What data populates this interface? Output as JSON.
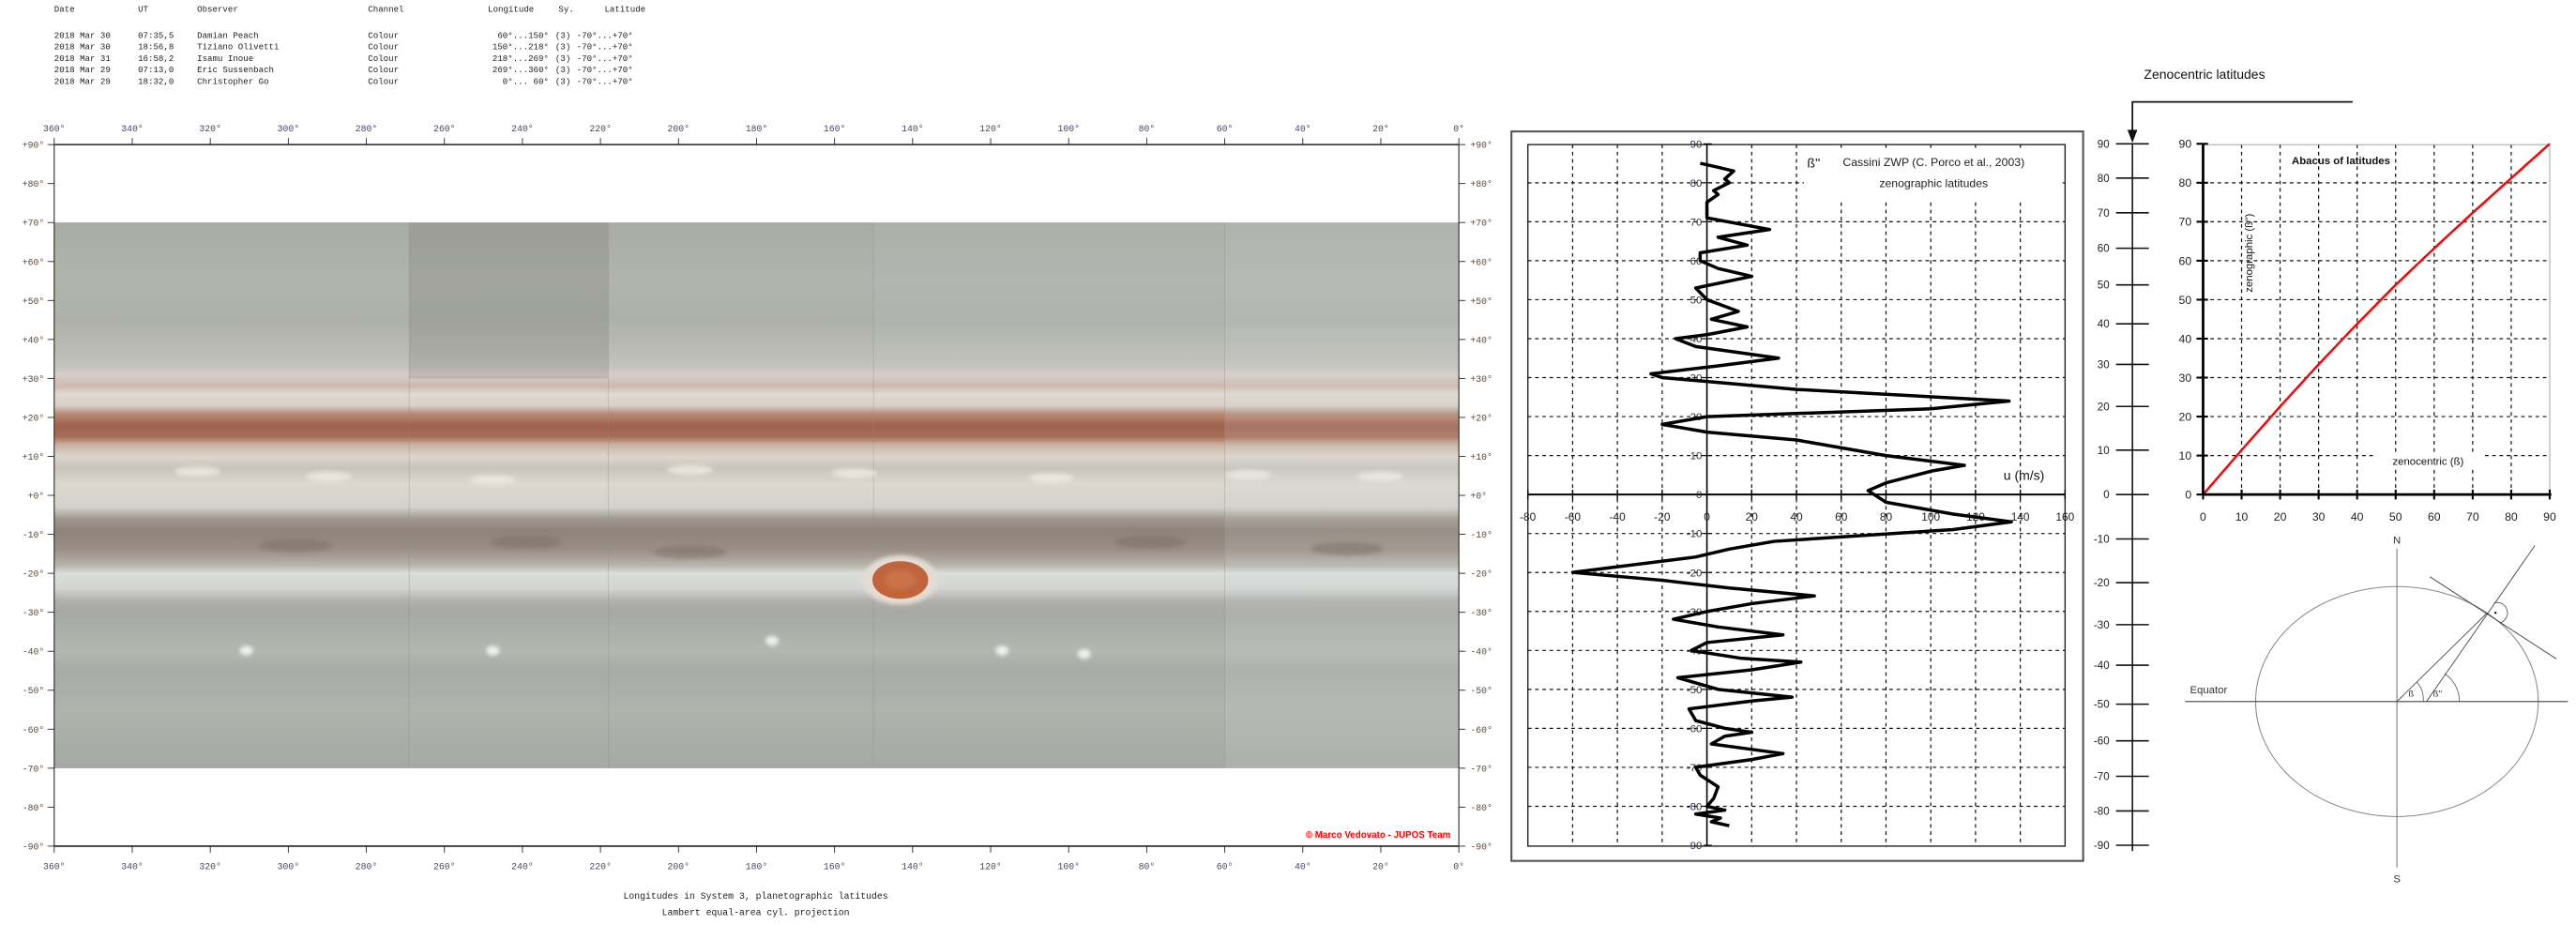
{
  "header": {
    "columns": [
      "Date",
      "UT",
      "Observer",
      "Channel",
      "Longitude",
      "Sy.",
      "Latitude"
    ],
    "rows": [
      [
        "2018 Mar 30",
        "07:35,5",
        "Damian Peach",
        "Colour",
        "60°...150°",
        "(3)",
        "-70°...+70°"
      ],
      [
        "2018 Mar 30",
        "18:56,8",
        "Tiziano Olivetti",
        "Colour",
        "150°...218°",
        "(3)",
        "-70°...+70°"
      ],
      [
        "2018 Mar 31",
        "16:58,2",
        "Isamu Inoue",
        "Colour",
        "218°...269°",
        "(3)",
        "-70°...+70°"
      ],
      [
        "2018 Mar 29",
        "07:13,0",
        "Eric Sussenbach",
        "Colour",
        "269°...360°",
        "(3)",
        "-70°...+70°"
      ],
      [
        "2018 Mar 29",
        "18:32,0",
        "Christopher Go",
        "Colour",
        "0°... 60°",
        "(3)",
        "-70°...+70°"
      ]
    ]
  },
  "map": {
    "lon_labels": [
      "360°",
      "340°",
      "320°",
      "300°",
      "280°",
      "260°",
      "240°",
      "220°",
      "200°",
      "180°",
      "160°",
      "140°",
      "120°",
      "100°",
      "80°",
      "60°",
      "40°",
      "20°",
      "0°"
    ],
    "lat_labels": [
      "+90°",
      "+80°",
      "+70°",
      "+60°",
      "+50°",
      "+40°",
      "+30°",
      "+20°",
      "+10°",
      "+0°",
      "-10°",
      "-20°",
      "-30°",
      "-40°",
      "-50°",
      "-60°",
      "-70°",
      "-80°",
      "-90°"
    ],
    "segment_boundaries_lon": [
      60,
      150,
      218,
      269
    ],
    "copyright": "© Marco Vedovato - JUPOS Team",
    "caption_line1": "Longitudes in System 3, planetographic latitudes",
    "caption_line2": "Lambert equal-area cyl. projection",
    "colors": {
      "copyright": "#ff0000",
      "grs": "#c0643c",
      "neb": "#a0624e"
    }
  },
  "zenocentric_scale": {
    "title": "Zenocentric latitudes",
    "labels": [
      "90",
      "80",
      "70",
      "60",
      "50",
      "40",
      "30",
      "20",
      "10",
      "0",
      "-10",
      "-20",
      "-30",
      "-40",
      "-50",
      "-60",
      "-70",
      "-80",
      "-90"
    ]
  },
  "chart_data": [
    {
      "type": "line",
      "title": "Cassini ZWP (C. Porco et al., 2003)",
      "subtitle": "zenographic latitudes",
      "xlabel": "u (m/s)",
      "ylabel": "ß''",
      "xlim": [
        -80,
        160
      ],
      "ylim": [
        -90,
        90
      ],
      "xticks": [
        "-80",
        "-60",
        "-40",
        "-20",
        "0",
        "20",
        "40",
        "60",
        "80",
        "100",
        "120",
        "140",
        "160"
      ],
      "yticks": [
        "90",
        "80",
        "70",
        "60",
        "50",
        "40",
        "30",
        "20",
        "10",
        "0",
        "-10",
        "-20",
        "-30",
        "-40",
        "-50",
        "-60",
        "-70",
        "-80",
        "-90"
      ],
      "grid": true,
      "series": [
        {
          "lat": [
            85,
            84,
            83,
            81,
            80,
            78,
            77,
            75,
            72,
            71,
            68,
            66,
            64,
            62,
            60,
            58,
            56,
            53,
            50,
            47,
            45,
            43,
            41,
            40,
            38,
            35,
            33,
            31,
            30,
            29,
            27,
            24,
            22,
            20,
            18,
            16,
            14,
            10,
            7.5,
            6,
            3,
            1,
            -2,
            -5,
            -7,
            -9,
            -12,
            -14,
            -16,
            -20,
            -22,
            -24,
            -26,
            -28,
            -30,
            -32,
            -34,
            -36,
            -38,
            -40,
            -42,
            -43,
            -45,
            -47,
            -50,
            -52,
            -53,
            -55,
            -58,
            -60,
            -61,
            -62,
            -64,
            -65,
            -66.5,
            -68,
            -70,
            -72,
            -75,
            -78,
            -80,
            -81,
            -82,
            -83,
            -84,
            -85
          ],
          "u": [
            -3,
            5,
            12,
            8,
            10,
            3,
            5,
            0,
            0,
            0,
            28,
            5,
            18,
            -3,
            -3,
            5,
            20,
            -5,
            0,
            14,
            2,
            18,
            0,
            -14,
            -5,
            32,
            5,
            -25,
            -20,
            0,
            40,
            135,
            100,
            0,
            -20,
            0,
            40,
            80,
            115,
            100,
            80,
            72,
            80,
            110,
            136,
            110,
            30,
            10,
            -5,
            -60,
            -20,
            10,
            48,
            20,
            0,
            -15,
            5,
            34,
            0,
            -7,
            15,
            42,
            20,
            -13,
            5,
            38,
            20,
            -8,
            -5,
            8,
            20,
            8,
            2,
            15,
            34,
            20,
            -5,
            -3,
            5,
            3,
            0,
            8,
            -5,
            6,
            2,
            10
          ]
        }
      ]
    },
    {
      "type": "line",
      "title": "Abacus of latitudes",
      "xlabel": "zenocentric (ß)",
      "ylabel": "zenographic (ß'')",
      "xlim": [
        0,
        90
      ],
      "ylim": [
        0,
        90
      ],
      "xticks": [
        "0",
        "10",
        "20",
        "30",
        "40",
        "50",
        "60",
        "70",
        "80",
        "90"
      ],
      "yticks": [
        "90",
        "80",
        "70",
        "60",
        "50",
        "40",
        "30",
        "20",
        "10",
        "0"
      ],
      "grid": true,
      "line_color": "#ff0000",
      "series": [
        {
          "x": [
            0,
            10,
            20,
            30,
            40,
            50,
            60,
            70,
            80,
            90
          ],
          "y": [
            0,
            11.4,
            22.6,
            33.4,
            43.8,
            53.8,
            63.2,
            72.3,
            81.2,
            90
          ]
        }
      ]
    }
  ],
  "diagram": {
    "north": "N",
    "south": "S",
    "equator": "Equator",
    "beta": "ß",
    "beta_zenographic": "ß''"
  }
}
